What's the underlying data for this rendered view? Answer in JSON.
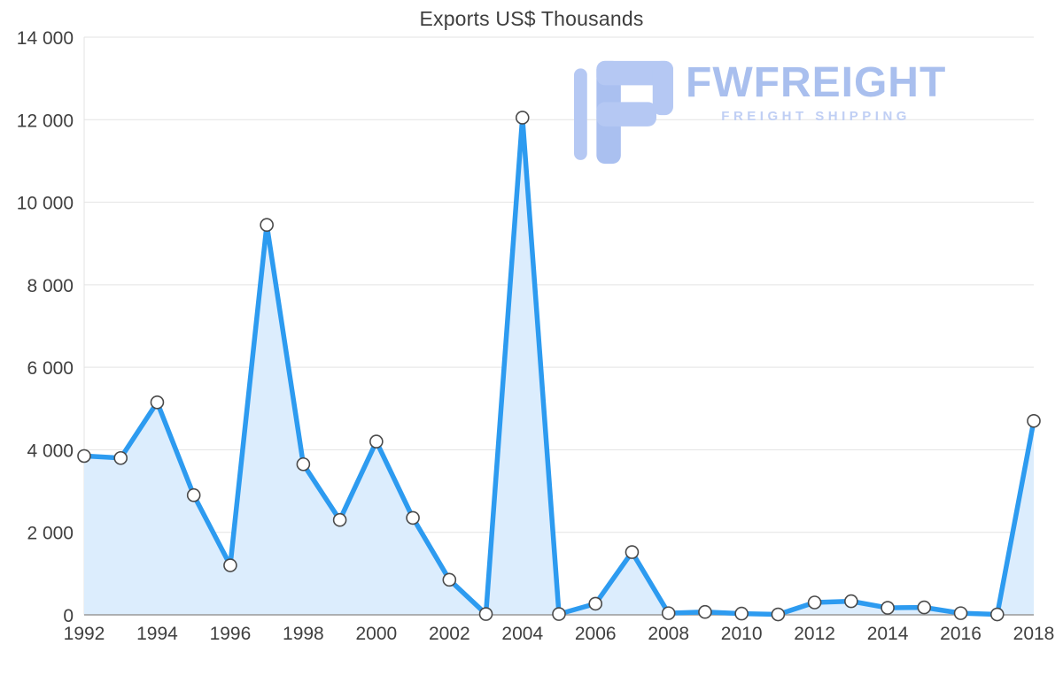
{
  "title": "Exports US$ Thousands",
  "watermark": {
    "brand": "FWFREIGHT",
    "tagline": "FREIGHT SHIPPING",
    "brand_color": "#a9bfee",
    "tagline_color": "#c0cff4",
    "icon_color": "#b5c8f3"
  },
  "chart_data": {
    "type": "area",
    "title": "Exports US$ Thousands",
    "x": [
      1992,
      1993,
      1994,
      1995,
      1996,
      1997,
      1998,
      1999,
      2000,
      2001,
      2002,
      2003,
      2004,
      2005,
      2006,
      2007,
      2008,
      2009,
      2010,
      2011,
      2012,
      2013,
      2014,
      2015,
      2016,
      2017,
      2018
    ],
    "values": [
      3850,
      3800,
      5150,
      2900,
      1200,
      9450,
      3650,
      2300,
      4200,
      2350,
      850,
      20,
      12050,
      20,
      270,
      1520,
      40,
      70,
      30,
      10,
      300,
      330,
      170,
      180,
      40,
      10,
      4700
    ],
    "x_tick_labels": [
      "1992",
      "1994",
      "1996",
      "1998",
      "2000",
      "2002",
      "2004",
      "2006",
      "2008",
      "2010",
      "2012",
      "2014",
      "2016",
      "2018"
    ],
    "y_ticks": [
      0,
      2000,
      4000,
      6000,
      8000,
      10000,
      12000,
      14000
    ],
    "y_tick_labels": [
      "0",
      "2 000",
      "4 000",
      "6 000",
      "8 000",
      "10 000",
      "12 000",
      "14 000"
    ],
    "ylim": [
      0,
      14000
    ],
    "grid": true,
    "legend": "none",
    "line_color": "#2d9bf0",
    "fill_color": "#dcedfd",
    "grid_color": "#e3e3e3",
    "axis_color": "#9a9a9a",
    "tick_label_color": "#3f3f3f",
    "marker_fill": "#ffffff",
    "marker_stroke": "#4a4a4a"
  }
}
